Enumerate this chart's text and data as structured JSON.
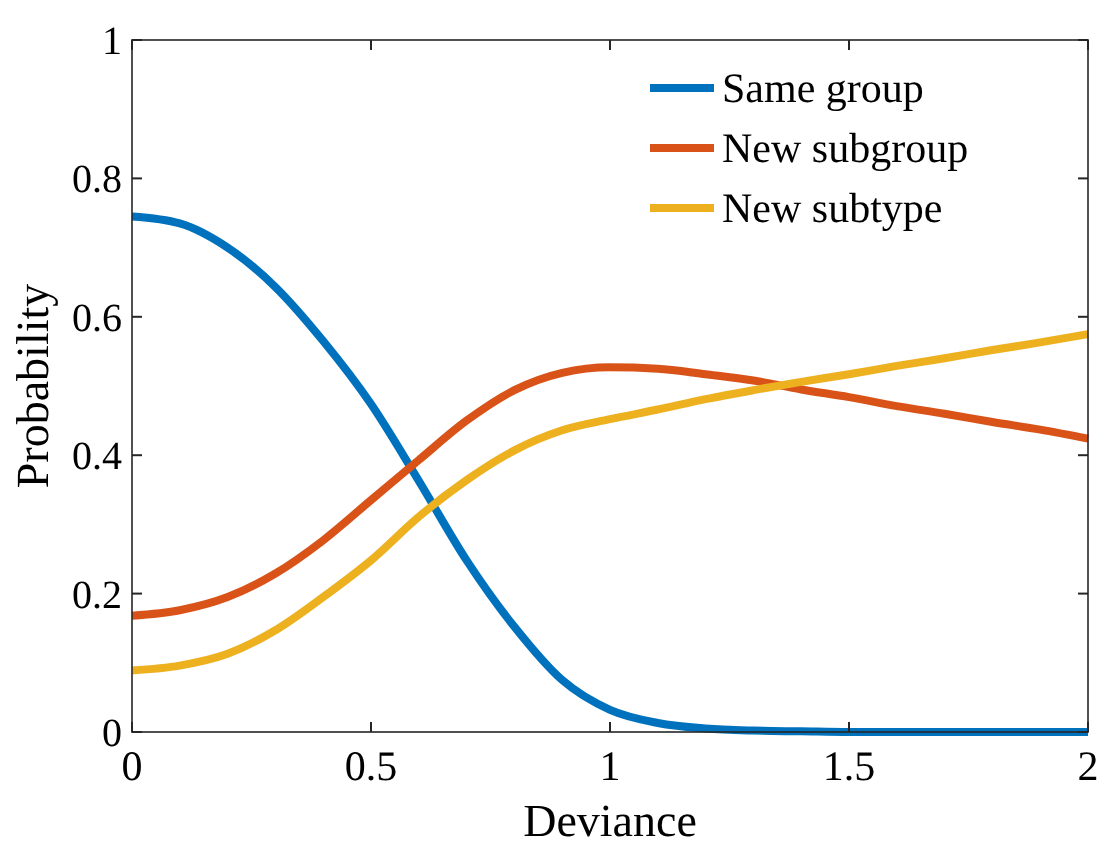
{
  "chart_data": {
    "type": "line",
    "xlabel": "Deviance",
    "ylabel": "Probability",
    "x": [
      0,
      0.1,
      0.2,
      0.3,
      0.4,
      0.5,
      0.6,
      0.7,
      0.8,
      0.9,
      1.0,
      1.1,
      1.2,
      1.3,
      1.4,
      1.5,
      1.6,
      1.7,
      1.8,
      1.9,
      2.0
    ],
    "series": [
      {
        "name": "Same group",
        "color": "#0072bd",
        "values": [
          0.745,
          0.735,
          0.7,
          0.643,
          0.565,
          0.474,
          0.363,
          0.248,
          0.152,
          0.075,
          0.032,
          0.013,
          0.005,
          0.002,
          0.001,
          0,
          0,
          0,
          0,
          0,
          0
        ]
      },
      {
        "name": "New subgroup",
        "color": "#d95319",
        "values": [
          0.168,
          0.176,
          0.195,
          0.229,
          0.277,
          0.335,
          0.393,
          0.45,
          0.494,
          0.519,
          0.527,
          0.525,
          0.517,
          0.508,
          0.495,
          0.484,
          0.471,
          0.46,
          0.448,
          0.437,
          0.424
        ]
      },
      {
        "name": "New subtype",
        "color": "#edb120",
        "values": [
          0.089,
          0.096,
          0.113,
          0.147,
          0.195,
          0.248,
          0.311,
          0.364,
          0.407,
          0.436,
          0.452,
          0.466,
          0.481,
          0.494,
          0.506,
          0.517,
          0.529,
          0.54,
          0.552,
          0.563,
          0.575
        ]
      }
    ],
    "xlim": [
      0,
      2
    ],
    "xticks": [
      0,
      0.5,
      1,
      1.5,
      2
    ],
    "ylim": [
      0,
      1
    ],
    "yticks": [
      0,
      0.2,
      0.4,
      0.6,
      0.8,
      1
    ],
    "grid": false,
    "legend": "top right",
    "marker": "none",
    "line_style": "solid"
  }
}
